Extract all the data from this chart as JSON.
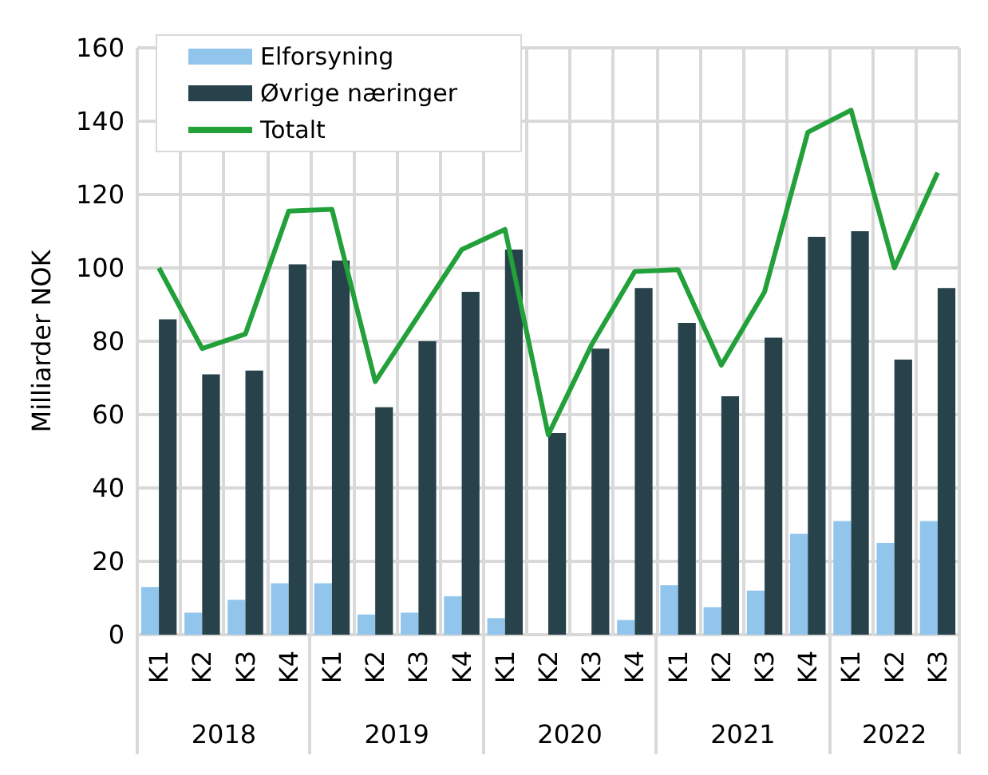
{
  "chart_data": {
    "type": "bar",
    "ylabel": "Milliarder NOK",
    "categories": [
      "K1",
      "K2",
      "K3",
      "K4",
      "K1",
      "K2",
      "K3",
      "K4",
      "K1",
      "K2",
      "K3",
      "K4",
      "K1",
      "K2",
      "K3",
      "K4",
      "K1",
      "K2",
      "K3"
    ],
    "annotations": [
      "2018",
      "2019",
      "2020",
      "2021",
      "2022"
    ],
    "series": [
      {
        "name": "Elforsyning",
        "color": "#92c5eb",
        "values": [
          13,
          6,
          9.5,
          14,
          14,
          5.5,
          6,
          10.5,
          4.5,
          0,
          0,
          4,
          13.5,
          7.5,
          12,
          27.5,
          31,
          25,
          31
        ]
      },
      {
        "name": "Øvrige næringer",
        "color": "#27424a",
        "values": [
          86,
          71,
          72,
          101,
          102,
          62,
          80,
          93.5,
          105,
          55,
          78,
          94.5,
          85,
          65,
          81,
          108.5,
          110,
          75,
          94.5
        ]
      },
      {
        "name": "Totalt",
        "type": "line",
        "color": "#22a03a",
        "values": [
          100,
          78,
          82,
          115.5,
          116,
          69,
          87,
          105,
          110.5,
          54.5,
          79,
          99,
          99.5,
          73.5,
          93.5,
          137,
          143,
          100,
          126
        ]
      }
    ],
    "ylim": [
      0,
      160
    ],
    "yticks": [
      0,
      20,
      40,
      60,
      80,
      100,
      120,
      140,
      160
    ],
    "grid": true,
    "legend": "top left",
    "marker": "none"
  }
}
